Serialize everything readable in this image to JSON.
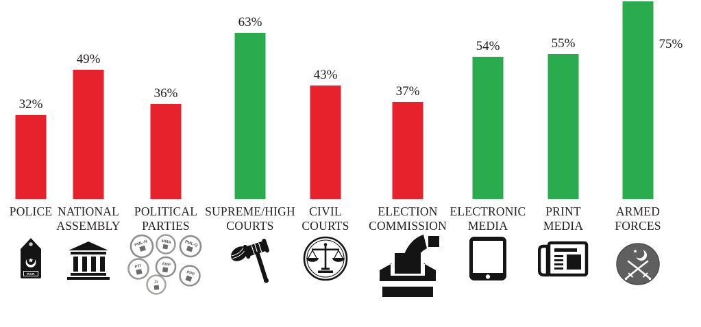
{
  "chart_data": {
    "type": "bar",
    "unit": "%",
    "grid": false,
    "axes_visible": false,
    "ylim": [
      0,
      80
    ],
    "bar_colors": {
      "red": "#e8222d",
      "green": "#2aab4d"
    },
    "categories": [
      "POLICE",
      "NATIONAL ASSEMBLY",
      "POLITICAL PARTIES",
      "SUPREME/HIGH COURTS",
      "CIVIL COURTS",
      "ELECTION COMMISSION",
      "ELECTRONIC MEDIA",
      "PRINT MEDIA",
      "ARMED FORCES"
    ],
    "values": [
      32,
      49,
      36,
      63,
      43,
      37,
      54,
      55,
      75
    ],
    "items": [
      {
        "category": "POLICE",
        "label_lines": [
          "POLICE"
        ],
        "value": 32,
        "value_label": "32%",
        "color": "#e8222d",
        "value_label_position": "above",
        "icon": "police-epaulette-icon",
        "icon_text": "P.S.P."
      },
      {
        "category": "NATIONAL ASSEMBLY",
        "label_lines": [
          "NATIONAL",
          "ASSEMBLY"
        ],
        "value": 49,
        "value_label": "49%",
        "color": "#e8222d",
        "value_label_position": "above",
        "icon": "parliament-building-icon"
      },
      {
        "category": "POLITICAL PARTIES",
        "label_lines": [
          "POLITICAL",
          "PARTIES"
        ],
        "value": 36,
        "value_label": "36%",
        "color": "#e8222d",
        "value_label_position": "above",
        "icon": "party-stamps-icon",
        "stamp_texts": [
          "PML-N",
          "MMA",
          "PML-Q",
          "PTI",
          "ANP",
          "JI",
          "PPP"
        ]
      },
      {
        "category": "SUPREME/HIGH COURTS",
        "label_lines": [
          "SUPREME/HIGH",
          "COURTS"
        ],
        "value": 63,
        "value_label": "63%",
        "color": "#2aab4d",
        "value_label_position": "above",
        "icon": "gavel-icon"
      },
      {
        "category": "CIVIL COURTS",
        "label_lines": [
          "CIVIL",
          "COURTS"
        ],
        "value": 43,
        "value_label": "43%",
        "color": "#e8222d",
        "value_label_position": "above",
        "icon": "scales-of-justice-icon"
      },
      {
        "category": "ELECTION COMMISSION",
        "label_lines": [
          "ELECTION",
          "COMMISSION"
        ],
        "value": 37,
        "value_label": "37%",
        "color": "#e8222d",
        "value_label_position": "above",
        "icon": "ballot-box-icon"
      },
      {
        "category": "ELECTRONIC MEDIA",
        "label_lines": [
          "ELECTRONIC",
          "MEDIA"
        ],
        "value": 54,
        "value_label": "54%",
        "color": "#2aab4d",
        "value_label_position": "above",
        "icon": "tablet-icon"
      },
      {
        "category": "PRINT MEDIA",
        "label_lines": [
          "PRINT",
          "MEDIA"
        ],
        "value": 55,
        "value_label": "55%",
        "color": "#2aab4d",
        "value_label_position": "above",
        "icon": "newspaper-icon"
      },
      {
        "category": "ARMED FORCES",
        "label_lines": [
          "ARMED",
          "FORCES"
        ],
        "value": 75,
        "value_label": "75%",
        "color": "#2aab4d",
        "value_label_position": "right",
        "icon": "army-crest-icon"
      }
    ]
  }
}
